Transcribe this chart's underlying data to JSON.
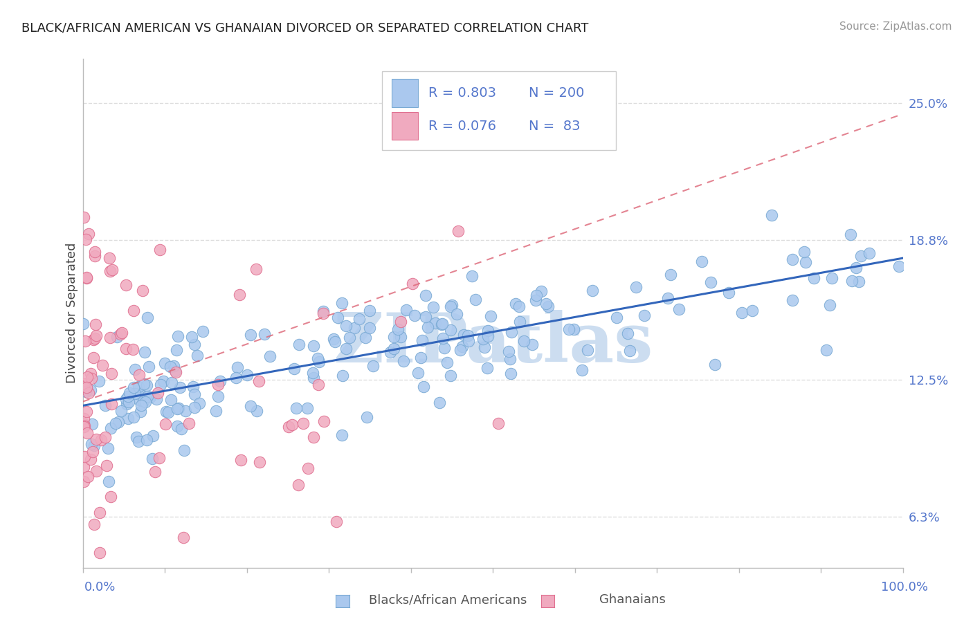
{
  "title": "BLACK/AFRICAN AMERICAN VS GHANAIAN DIVORCED OR SEPARATED CORRELATION CHART",
  "source": "Source: ZipAtlas.com",
  "ylabel": "Divorced or Separated",
  "yticks": [
    0.063,
    0.125,
    0.188,
    0.25
  ],
  "ytick_labels": [
    "6.3%",
    "12.5%",
    "18.8%",
    "25.0%"
  ],
  "blue_label": "Blacks/African Americans",
  "pink_label": "Ghanaians",
  "blue_R": "0.803",
  "blue_N": "200",
  "pink_R": "0.076",
  "pink_N": "83",
  "blue_color": "#aac8ee",
  "blue_edge": "#7aaad4",
  "pink_color": "#f0aabf",
  "pink_edge": "#e07090",
  "blue_line_color": "#3366bb",
  "pink_line_color": "#dd6677",
  "watermark_color": "#ccddf0",
  "background_color": "#ffffff",
  "grid_color": "#dddddd",
  "xlim": [
    0,
    1.0
  ],
  "ylim": [
    0.04,
    0.27
  ]
}
